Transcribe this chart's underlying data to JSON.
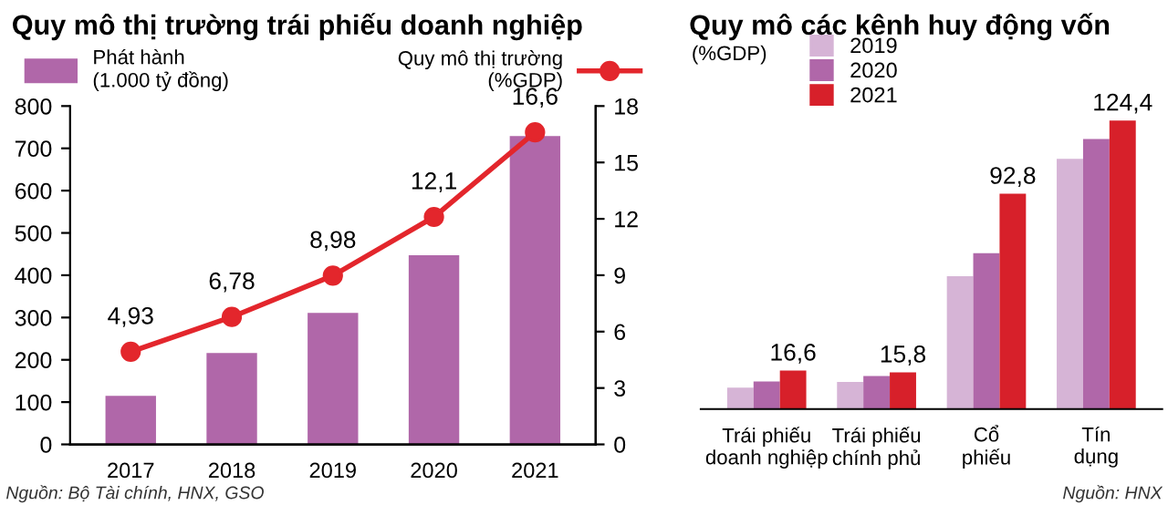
{
  "chart_data": [
    {
      "type": "bar",
      "title": "Quy mô thị trường trái phiếu doanh nghiệp",
      "categories": [
        "2017",
        "2018",
        "2019",
        "2020",
        "2021"
      ],
      "series": [
        {
          "name": "Phát hành\n(1.000 tỷ đồng)",
          "color": "#b067a9",
          "values": [
            115,
            216,
            311,
            447,
            729
          ]
        },
        {
          "name": "Quy mô thị trường\n(%GDP)",
          "type": "line",
          "axis": "y2",
          "color": "#e3262c",
          "values": [
            4.93,
            6.78,
            8.98,
            12.1,
            16.6
          ],
          "value_labels": [
            "4,93",
            "6,78",
            "8,98",
            "12,1",
            "16,6"
          ]
        }
      ],
      "ylim": [
        0,
        800
      ],
      "yticks": [
        0,
        100,
        200,
        300,
        400,
        500,
        600,
        700,
        800
      ],
      "y2lim": [
        0,
        18
      ],
      "y2ticks": [
        0,
        3,
        6,
        9,
        12,
        15,
        18
      ],
      "marker": "circle",
      "legend": "top",
      "grid": false,
      "annotations": [
        "Nguồn: Bộ Tài chính, HNX, GSO"
      ]
    },
    {
      "type": "bar",
      "title": "Quy mô các kênh huy động vốn",
      "ylabel": "(%GDP)",
      "categories": [
        "Trái phiếu\ndoanh nghiệp",
        "Trái phiếu\nchính phủ",
        "Cổ\nphiếu",
        "Tín\ndụng"
      ],
      "series": [
        {
          "name": "2019",
          "color": "#d6b4d6",
          "values": [
            9.2,
            11.7,
            57.3,
            107.9
          ]
        },
        {
          "name": "2020",
          "color": "#b067a9",
          "values": [
            11.9,
            14.2,
            67.2,
            116.4
          ]
        },
        {
          "name": "2021",
          "color": "#d7202a",
          "values": [
            16.6,
            15.8,
            92.8,
            124.4
          ],
          "value_labels": [
            "16,6",
            "15,8",
            "92,8",
            "124,4"
          ]
        }
      ],
      "tick_labels": "x",
      "legend": "top left",
      "grid": false,
      "annotations": [
        "Nguồn: HNX"
      ]
    }
  ]
}
